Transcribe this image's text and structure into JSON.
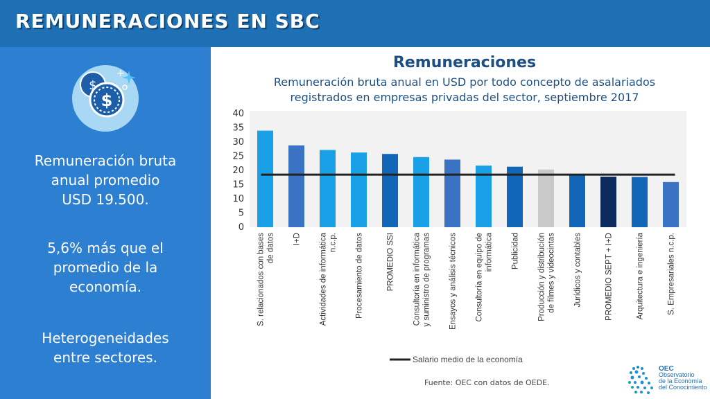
{
  "header": {
    "title": "REMUNERACIONES EN SBC"
  },
  "sidebar": {
    "icon": "dollar-coins-icon",
    "text1": [
      "Remuneración bruta",
      "anual promedio",
      "USD 19.500."
    ],
    "text2": [
      "5,6% más que el",
      "promedio de la",
      "economía."
    ],
    "text3": [
      "Heterogeneidades",
      "entre sectores."
    ]
  },
  "chart_data": {
    "type": "bar",
    "title": "Remuneraciones",
    "subtitle": [
      "Remuneración bruta anual en USD por todo concepto de asalariados",
      "registrados en empresas privadas del sector, septiembre 2017"
    ],
    "categories": [
      [
        "S. relacionados con bases",
        "de datos"
      ],
      [
        "I+D"
      ],
      [
        "Actividades de informática",
        "n.c.p."
      ],
      [
        "Procesamiento de datos"
      ],
      [
        "PROMEDIO SSI"
      ],
      [
        "Consultoría en informática",
        "y suministro de programas"
      ],
      [
        "Ensayos y análisis técnicos"
      ],
      [
        "Consultoría en equipo de",
        "informática"
      ],
      [
        "Publicidad"
      ],
      [
        "Producción y distribución",
        "de filmes y videocintas"
      ],
      [
        "Jurídicos y contables"
      ],
      [
        "PROMEDIO SEPT + I+D"
      ],
      [
        "Arquitectura e ingeniería"
      ],
      [
        "S. Empresariales n.c.p."
      ]
    ],
    "values": [
      34,
      28.8,
      27.2,
      26.3,
      25.8,
      24.7,
      23.8,
      21.7,
      21.3,
      20.3,
      18.6,
      17.8,
      17.7,
      15.9
    ],
    "colors": [
      "#1aa0e6",
      "#3a72c4",
      "#1aa0e6",
      "#1aa0e6",
      "#1166b8",
      "#1aa0e6",
      "#3a72c4",
      "#1aa0e6",
      "#1166b8",
      "#c9c9c9",
      "#1166b8",
      "#0d2a5e",
      "#1166b8",
      "#3a72c4"
    ],
    "reference_line": {
      "name": "Salario medio de la economía",
      "value": 18.5
    },
    "y_ticks": [
      0,
      5,
      10,
      15,
      20,
      25,
      30,
      35,
      40
    ],
    "ylim": [
      0,
      40
    ],
    "legend_position": "bottom",
    "source": "Fuente: OEC con datos de OEDE."
  },
  "logo": {
    "name": "OEC",
    "line1": "Observatorio",
    "line2": "de la Economía",
    "line3": "del Conocimiento"
  }
}
